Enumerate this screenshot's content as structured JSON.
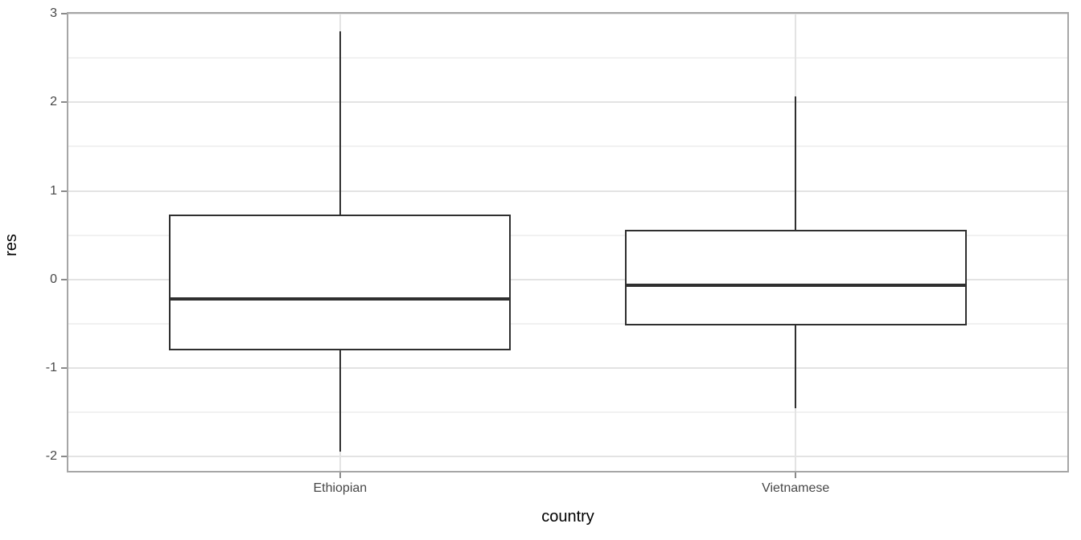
{
  "chart_data": {
    "type": "boxplot",
    "title": "",
    "xlabel": "country",
    "ylabel": "res",
    "categories": [
      "Ethiopian",
      "Vietnamese"
    ],
    "series": [
      {
        "category": "Ethiopian",
        "whisker_low": -1.94,
        "q1": -0.8,
        "median": -0.22,
        "q3": 0.73,
        "whisker_high": 2.8
      },
      {
        "category": "Vietnamese",
        "whisker_low": -1.45,
        "q1": -0.52,
        "median": -0.07,
        "q3": 0.56,
        "whisker_high": 2.07
      }
    ],
    "yticks_major": [
      -2,
      -1,
      0,
      1,
      2,
      3
    ],
    "yticks_minor": [
      -1.5,
      -0.5,
      0.5,
      1.5,
      2.5
    ],
    "ylim": [
      -2.18,
      3.02
    ],
    "grid": true,
    "legend": false,
    "colors": {
      "box_line": "#2f2f2f",
      "box_fill": "#ffffff",
      "grid_major": "#e3e3e3",
      "grid_minor": "#f1f1f1",
      "panel_border": "#a6a6a6",
      "axis_text": "#474747",
      "axis_title": "#000000",
      "tick_mark": "#8a8a8a",
      "background": "#ffffff"
    }
  }
}
